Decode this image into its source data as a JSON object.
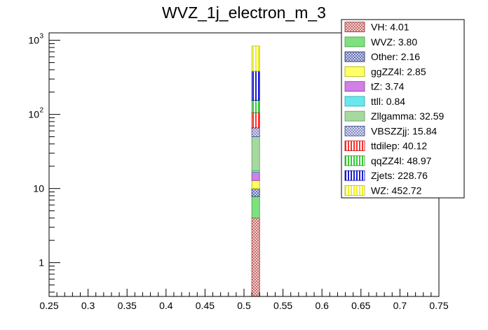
{
  "chart_data": {
    "type": "bar",
    "title": "WVZ_1j_electron_m_3",
    "xlabel": "",
    "ylabel": "",
    "xlim": [
      0.25,
      0.75
    ],
    "ylim": [
      0.35,
      1260
    ],
    "log_y": true,
    "stacked": true,
    "grid": false,
    "legend_position": "top-right",
    "bin": [
      0.51,
      0.52
    ],
    "x_ticks": [
      "0.25",
      "0.3",
      "0.35",
      "0.4",
      "0.45",
      "0.5",
      "0.55",
      "0.6",
      "0.65",
      "0.7",
      "0.75"
    ],
    "y_ticks": [
      {
        "value": 1,
        "label": "1"
      },
      {
        "value": 10,
        "label": "10"
      },
      {
        "value": 100,
        "label": "10",
        "exp": "2"
      },
      {
        "value": 1000,
        "label": "10",
        "exp": "3"
      }
    ],
    "series": [
      {
        "name": "VH",
        "value": 4.01,
        "legend": "VH: 4.01",
        "fill": "#c86464",
        "pattern": "cross",
        "line": "#993333"
      },
      {
        "name": "WVZ",
        "value": 3.8,
        "legend": "WVZ: 3.80",
        "fill": "#7fe07f",
        "pattern": "solid",
        "line": "#3b9e3b"
      },
      {
        "name": "Other",
        "value": 2.16,
        "legend": "Other: 2.16",
        "fill": "#5b6ab0",
        "pattern": "cross",
        "line": "#1e2a7a"
      },
      {
        "name": "ggZZ4l",
        "value": 2.85,
        "legend": "ggZZ4l: 2.85",
        "fill": "#ffff66",
        "pattern": "solid",
        "line": "#b0b000"
      },
      {
        "name": "tZ",
        "value": 3.74,
        "legend": "tZ: 3.74",
        "fill": "#d27fe6",
        "pattern": "solid",
        "line": "#8e3aa6"
      },
      {
        "name": "ttll",
        "value": 0.84,
        "legend": "ttll: 0.84",
        "fill": "#66e8ee",
        "pattern": "solid",
        "line": "#2aa6ab"
      },
      {
        "name": "Zllgamma",
        "value": 32.59,
        "legend": "Zllgamma: 32.59",
        "fill": "#a6d9a0",
        "pattern": "solid",
        "line": "#5e9a58"
      },
      {
        "name": "VBSZZjj",
        "value": 15.84,
        "legend": "VBSZZjj: 15.84",
        "fill": "#7f88c4",
        "pattern": "cross",
        "line": "#3d4a8e"
      },
      {
        "name": "ttdilep",
        "value": 40.12,
        "legend": "ttdilep: 40.12",
        "fill": "#ff3030",
        "pattern": "vlines",
        "line": "#cc0000"
      },
      {
        "name": "qqZZ4l",
        "value": 48.97,
        "legend": "qqZZ4l: 48.97",
        "fill": "#33cc33",
        "pattern": "vlines",
        "line": "#1f8f1f"
      },
      {
        "name": "Zjets",
        "value": 228.76,
        "legend": "Zjets: 228.76",
        "fill": "#2020d0",
        "pattern": "vlines",
        "line": "#0000aa"
      },
      {
        "name": "WZ",
        "value": 452.72,
        "legend": "WZ: 452.72",
        "fill": "#f0f020",
        "pattern": "vlines",
        "line": "#b8b800"
      }
    ]
  }
}
